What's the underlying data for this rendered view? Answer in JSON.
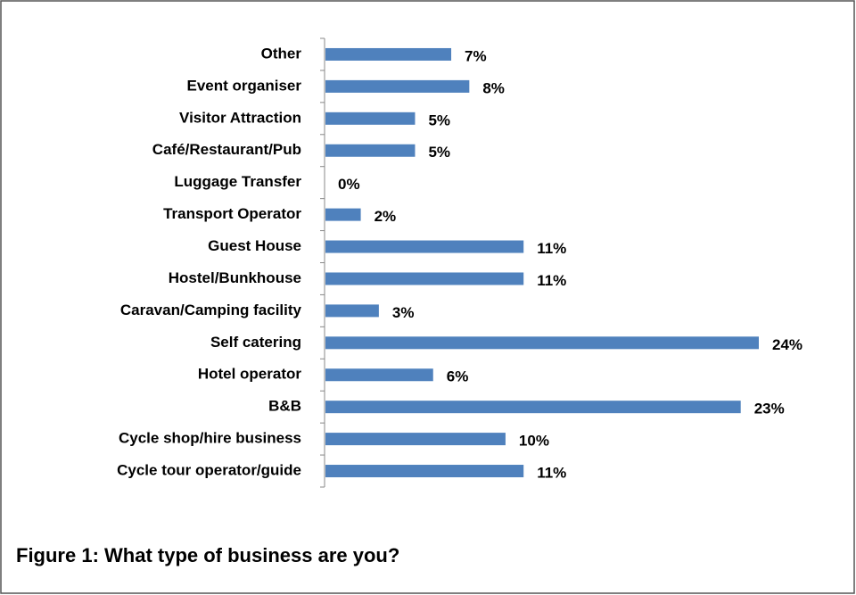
{
  "chart_data": {
    "type": "bar",
    "orientation": "horizontal",
    "title": "Figure 1: What type of business are you?",
    "categories": [
      "Other",
      "Event organiser",
      "Visitor Attraction",
      "Café/Restaurant/Pub",
      "Luggage Transfer",
      "Transport Operator",
      "Guest House",
      "Hostel/Bunkhouse",
      "Caravan/Camping facility",
      "Self catering",
      "Hotel operator",
      "B&B",
      "Cycle shop/hire business",
      "Cycle tour operator/guide"
    ],
    "values": [
      7,
      8,
      5,
      5,
      0,
      2,
      11,
      11,
      3,
      24,
      6,
      23,
      10,
      11
    ],
    "value_labels": [
      "7%",
      "8%",
      "5%",
      "5%",
      "0%",
      "2%",
      "11%",
      "11%",
      "3%",
      "24%",
      "6%",
      "23%",
      "10%",
      "11%"
    ],
    "color": "#4f81bd"
  }
}
